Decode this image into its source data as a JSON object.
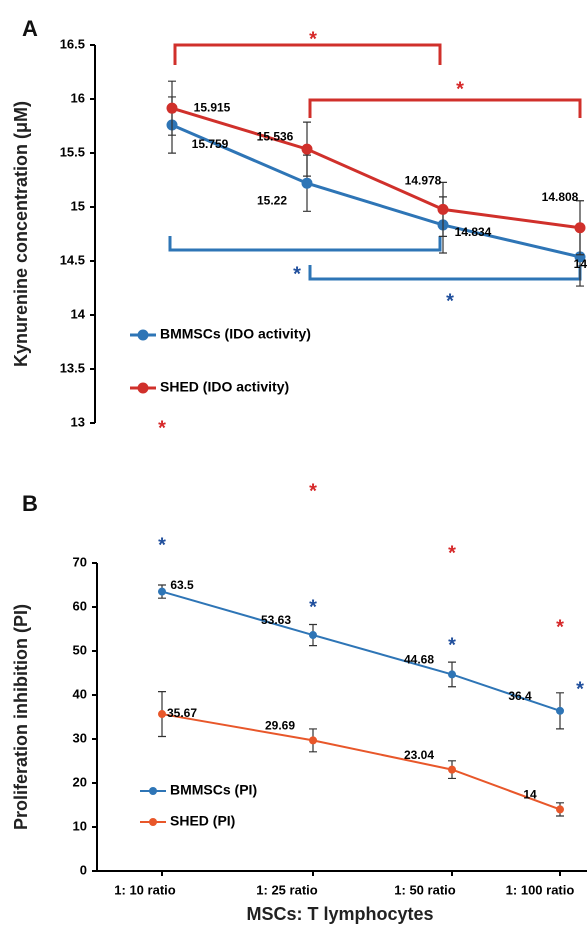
{
  "chart_data": [
    {
      "type": "line",
      "panel": "A",
      "ylabel": "Kynurenine concentration (μM)",
      "categories": [
        null,
        null,
        null,
        null
      ],
      "series": [
        {
          "name": "BMMSCs (IDO activity)",
          "color": "#2e75b6",
          "values": [
            15.759,
            15.22,
            14.834,
            14.538
          ],
          "errors": [
            0.26,
            0.26,
            0.26,
            0.27
          ]
        },
        {
          "name": "SHED (IDO activity)",
          "color": "#d0302b",
          "values": [
            15.915,
            15.536,
            14.978,
            14.808
          ],
          "errors": [
            0.25,
            0.25,
            0.25,
            0.25
          ]
        }
      ],
      "annotations": [
        {
          "text": "*",
          "color": "#d62728"
        },
        {
          "text": "*",
          "color": "#d62728"
        },
        {
          "text": "*",
          "color": "#1f4e9c"
        },
        {
          "text": "*",
          "color": "#1f4e9c"
        }
      ],
      "ylim": [
        13,
        16.5
      ],
      "yticks": [
        13,
        13.5,
        14,
        14.5,
        15,
        15.5,
        16,
        16.5
      ]
    },
    {
      "type": "line",
      "panel": "B",
      "ylabel": "Proliferation inhibition (PI)",
      "xlabel": "MSCs: T lymphocytes",
      "categories": [
        "1: 10 ratio",
        "1: 25 ratio",
        "1: 50 ratio",
        "1: 100 ratio"
      ],
      "series": [
        {
          "name": "BMMSCs (PI)",
          "color": "#2e75b6",
          "values": [
            63.5,
            53.63,
            44.68,
            36.4
          ],
          "errors": [
            1.5,
            2.4,
            2.8,
            4.1
          ]
        },
        {
          "name": "SHED (PI)",
          "color": "#e8572a",
          "values": [
            35.67,
            29.69,
            23.04,
            14
          ],
          "errors": [
            5.1,
            2.6,
            2,
            1.5
          ]
        }
      ],
      "annotations": [
        {
          "text": "*",
          "color": "#1f4e9c"
        },
        {
          "text": "*",
          "color": "#1f4e9c"
        },
        {
          "text": "*",
          "color": "#1f4e9c"
        },
        {
          "text": "*",
          "color": "#1f4e9c"
        },
        {
          "text": "*",
          "color": "#d62728"
        },
        {
          "text": "*",
          "color": "#d62728"
        },
        {
          "text": "*",
          "color": "#d62728"
        },
        {
          "text": "*",
          "color": "#d62728"
        }
      ],
      "ylim": [
        0,
        70
      ],
      "yticks": [
        0,
        10,
        20,
        30,
        40,
        50,
        60,
        70
      ]
    }
  ]
}
